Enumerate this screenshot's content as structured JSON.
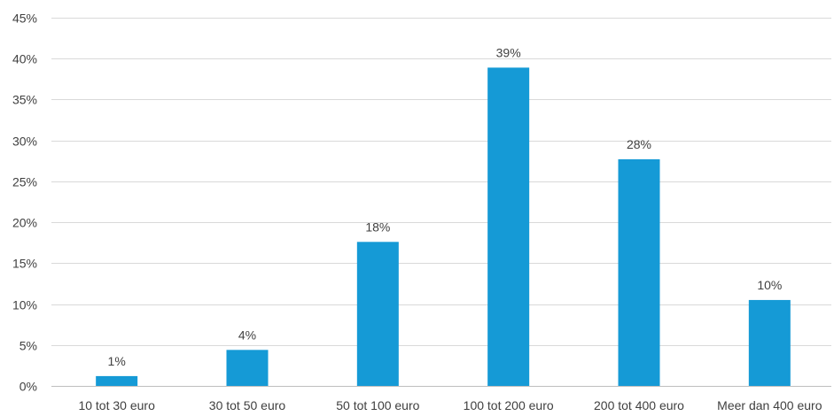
{
  "chart_data": {
    "type": "bar",
    "categories": [
      "10 tot 30 euro",
      "30 tot 50 euro",
      "50 tot 100 euro",
      "100 tot 200 euro",
      "200 tot 400 euro",
      "Meer dan 400 euro"
    ],
    "values": [
      1.2,
      4.4,
      17.6,
      38.9,
      27.7,
      10.5
    ],
    "data_labels": [
      "1%",
      "4%",
      "18%",
      "39%",
      "28%",
      "10%"
    ],
    "y_ticks": [
      0,
      5,
      10,
      15,
      20,
      25,
      30,
      35,
      40,
      45
    ],
    "y_tick_labels": [
      "0%",
      "5%",
      "10%",
      "15%",
      "20%",
      "25%",
      "30%",
      "35%",
      "40%",
      "45%"
    ],
    "ylim": [
      0,
      45
    ],
    "grid": true,
    "legend": "none",
    "bar_color": "#159ad6",
    "grid_color": "#d9d9d9",
    "text_color": "#404040"
  }
}
